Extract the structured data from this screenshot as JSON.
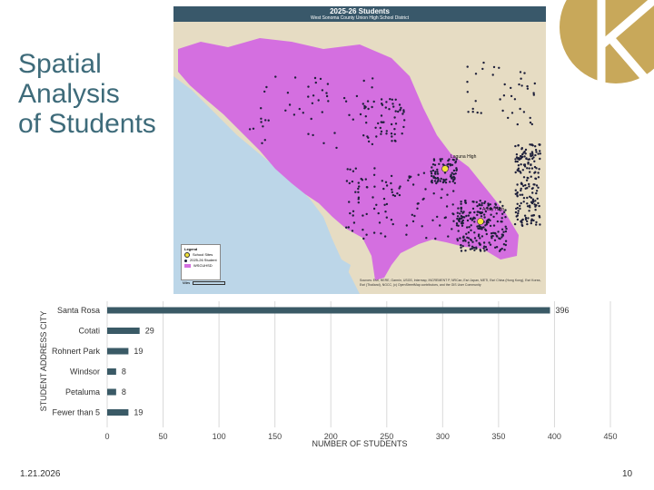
{
  "slide": {
    "title_lines": [
      "Spatial",
      "Analysis",
      "of Students"
    ],
    "date": "1.21.2026",
    "page_number": "10",
    "accent_color": "#3e6b7a",
    "logo_color": "#c8a85a"
  },
  "map": {
    "title": "2025-26 Students",
    "subtitle": "West Sonoma County Union High School District",
    "school_labels": [
      "Laguna High",
      "Analy High"
    ],
    "legend": {
      "heading": "Legend",
      "items": [
        "School Sites",
        "2025-26 Student",
        "WSCUHSD"
      ]
    },
    "scale_label": "Miles",
    "credit": "Sources: Esri, HERE, Garmin, USGS, Intermap, INCREMENT P, NRCan, Esri Japan, METI, Esri China (Hong Kong), Esri Korea, Esri (Thailand), NGCC, (c) OpenStreetMap contributors, and the GIS User Community",
    "colors": {
      "header": "#39586a",
      "district": "#d46fe0",
      "ocean": "#bcd6e8",
      "land": "#e6dcc3",
      "student_dot": "#1d1f3a",
      "school": "#f2e23a"
    }
  },
  "chart_data": {
    "type": "bar",
    "orientation": "horizontal",
    "categories": [
      "Santa Rosa",
      "Cotati",
      "Rohnert Park",
      "Windsor",
      "Petaluma",
      "Fewer than 5"
    ],
    "values": [
      396,
      29,
      19,
      8,
      8,
      19
    ],
    "xlabel": "NUMBER OF STUDENTS",
    "ylabel": "STUDENT ADDRESS CITY",
    "xlim": [
      0,
      450
    ],
    "xticks": [
      0,
      50,
      100,
      150,
      200,
      250,
      300,
      350,
      400,
      450
    ],
    "grid": true,
    "data_labels": true,
    "bar_color": "#3a5a66"
  }
}
